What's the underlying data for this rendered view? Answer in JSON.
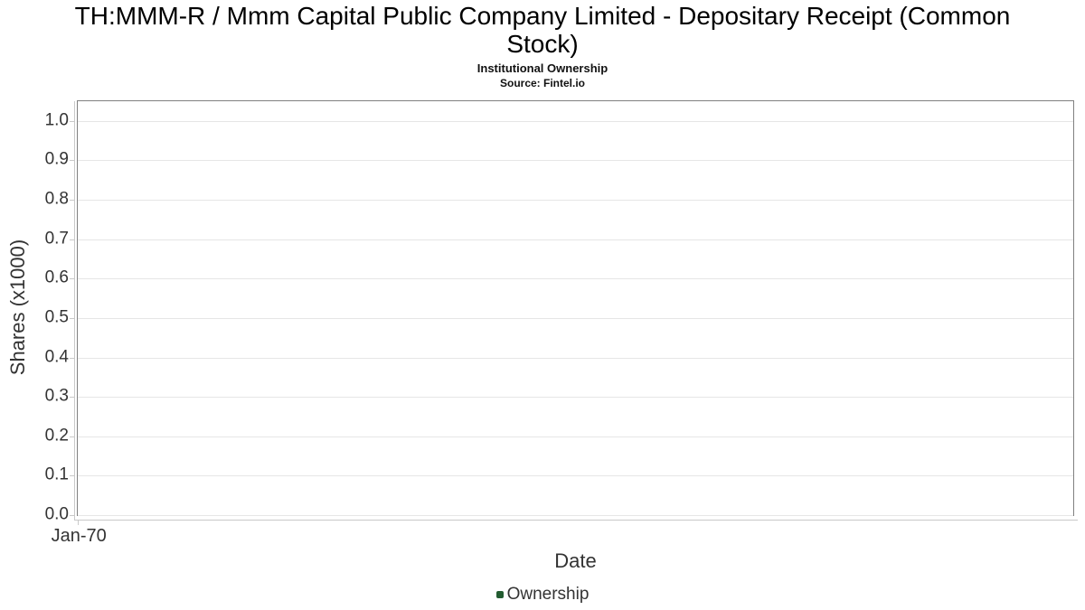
{
  "header": {
    "title": "TH:MMM-R / Mmm Capital Public Company Limited - Depositary Receipt (Common Stock)",
    "subtitle": "Institutional Ownership",
    "source": "Source: Fintel.io"
  },
  "chart_data": {
    "type": "line",
    "title": "TH:MMM-R / Mmm Capital Public Company Limited - Depositary Receipt (Common Stock)",
    "subtitle": "Institutional Ownership",
    "source": "Source: Fintel.io",
    "xlabel": "Date",
    "ylabel": "Shares (x1000)",
    "ylim": [
      0,
      1.05
    ],
    "yticks": [
      0.0,
      0.1,
      0.2,
      0.3,
      0.4,
      0.5,
      0.6,
      0.7,
      0.8,
      0.9,
      1.0
    ],
    "ytick_labels": [
      "0.0",
      "0.1",
      "0.2",
      "0.3",
      "0.4",
      "0.5",
      "0.6",
      "0.7",
      "0.8",
      "0.9",
      "1.0"
    ],
    "xtick_labels": [
      "Jan-70"
    ],
    "grid": "horizontal-only",
    "legend_position": "bottom",
    "legend": [
      {
        "label": "Ownership",
        "color": "#235c31"
      }
    ],
    "series": [
      {
        "name": "Ownership",
        "x": [],
        "y": []
      }
    ]
  },
  "colors": {
    "background": "#ffffff",
    "plot_border": "#808080",
    "gridline": "#e6e6e6",
    "axis_line": "#c9c9c9",
    "tick_text": "#333333",
    "title_text": "#000000",
    "legend_marker": "#235c31"
  }
}
